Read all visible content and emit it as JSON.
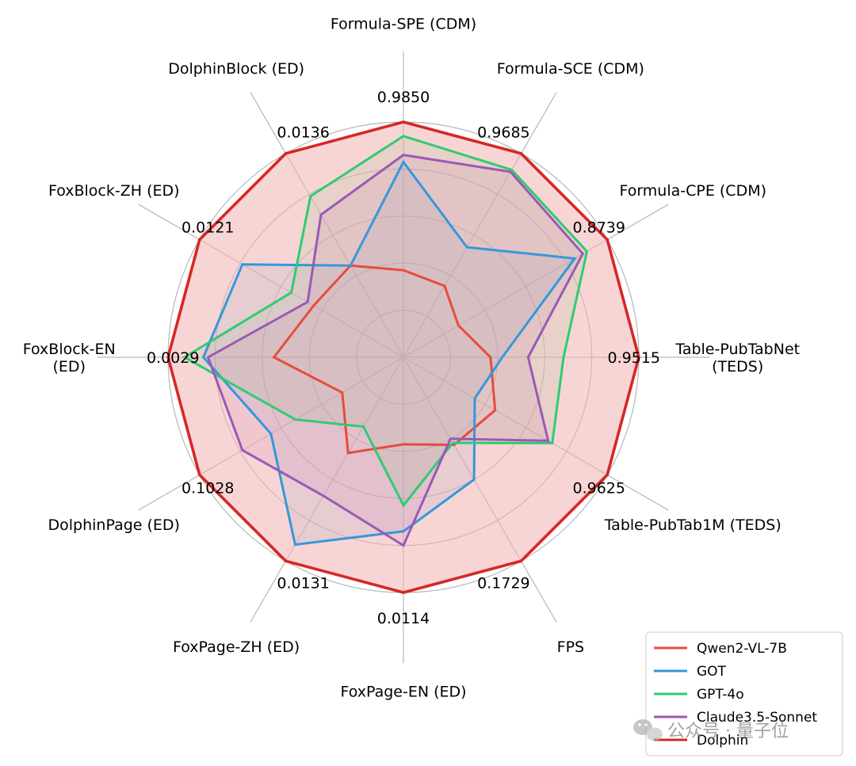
{
  "chart_data": {
    "type": "radar",
    "axes": [
      "Formula-SPE (CDM)",
      "Formula-SCE (CDM)",
      "Formula-CPE (CDM)",
      "Table-PubTabNet\n(TEDS)",
      "Table-PubTab1M (TEDS)",
      "FPS",
      "FoxPage-EN (ED)",
      "FoxPage-ZH (ED)",
      "DolphinPage (ED)",
      "FoxBlock-EN\n(ED)",
      "FoxBlock-ZH (ED)",
      "DolphinBlock (ED)"
    ],
    "axis_value_labels": [
      "0.9850",
      "0.9685",
      "0.8739",
      "0.9515",
      "0.9625",
      "0.1729",
      "0.0114",
      "0.0131",
      "0.1028",
      "0.0029",
      "0.0121",
      "0.0136"
    ],
    "rlim": [
      0,
      1
    ],
    "grid_rings": [
      0.2,
      0.4,
      0.6,
      0.8,
      1.0
    ],
    "series": [
      {
        "name": "Qwen2-VL-7B",
        "color": "#e74c3c",
        "fill": false,
        "values": [
          0.37,
          0.35,
          0.27,
          0.37,
          0.45,
          0.43,
          0.37,
          0.47,
          0.3,
          0.55,
          0.44,
          0.45
        ]
      },
      {
        "name": "GOT",
        "color": "#3498db",
        "fill": true,
        "values": [
          0.83,
          0.54,
          0.84,
          0.42,
          0.35,
          0.6,
          0.74,
          0.92,
          0.65,
          0.85,
          0.79,
          0.45
        ]
      },
      {
        "name": "GPT-4o",
        "color": "#2ecc71",
        "fill": true,
        "values": [
          0.94,
          0.92,
          0.9,
          0.68,
          0.73,
          0.42,
          0.63,
          0.34,
          0.53,
          0.93,
          0.55,
          0.79
        ]
      },
      {
        "name": "Claude3.5-Sonnet",
        "color": "#9b59b6",
        "fill": true,
        "values": [
          0.86,
          0.91,
          0.88,
          0.53,
          0.71,
          0.4,
          0.8,
          0.68,
          0.79,
          0.83,
          0.47,
          0.7
        ]
      },
      {
        "name": "Dolphin",
        "color": "#d62728",
        "fill": true,
        "fill_color": "#f2b2b2",
        "values": [
          1.0,
          1.0,
          1.0,
          1.0,
          1.0,
          1.0,
          1.0,
          1.0,
          1.0,
          1.0,
          1.0,
          1.0
        ]
      }
    ],
    "legend_position": "bottom-right",
    "grid": true
  },
  "watermark": {
    "text": "公众号 · 量子位",
    "icon": "wechat-icon"
  }
}
